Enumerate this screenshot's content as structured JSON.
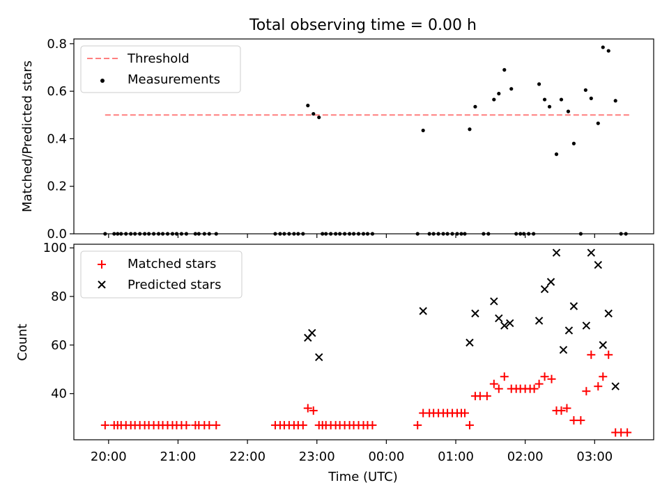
{
  "chart_data": [
    {
      "type": "scatter",
      "title": "Total observing time = 0.00 h",
      "xlabel": "",
      "ylabel": "Matched/Predicted stars",
      "xlim": [
        19.5,
        27.85
      ],
      "ylim": [
        0,
        0.82
      ],
      "yticks": [
        0.0,
        0.2,
        0.4,
        0.6,
        0.8
      ],
      "ytick_labels": [
        "0.0",
        "0.2",
        "0.4",
        "0.6",
        "0.8"
      ],
      "legend_position": "top-left",
      "threshold": {
        "name": "Threshold",
        "y": 0.5,
        "x_range": [
          19.95,
          27.5
        ],
        "color": "#ff7f7f"
      },
      "series": [
        {
          "name": "Measurements",
          "color": "#000000",
          "x": [
            19.95,
            20.08,
            20.13,
            20.18,
            20.25,
            20.32,
            20.38,
            20.45,
            20.52,
            20.58,
            20.65,
            20.72,
            20.78,
            20.85,
            20.92,
            20.98,
            21.05,
            21.12,
            21.25,
            21.3,
            21.38,
            21.45,
            21.55,
            22.4,
            22.47,
            22.53,
            22.6,
            22.67,
            22.73,
            22.8,
            22.87,
            22.95,
            23.03,
            23.08,
            23.13,
            23.2,
            23.27,
            23.33,
            23.4,
            23.47,
            23.53,
            23.6,
            23.67,
            23.73,
            23.8,
            24.45,
            24.53,
            24.62,
            24.68,
            24.75,
            24.82,
            24.88,
            24.95,
            25.02,
            25.08,
            25.13,
            25.2,
            25.28,
            25.4,
            25.47,
            25.55,
            25.62,
            25.7,
            25.8,
            25.87,
            25.93,
            25.98,
            26.05,
            26.12,
            26.2,
            26.28,
            26.35,
            26.45,
            26.52,
            26.62,
            26.7,
            26.8,
            26.87,
            26.95,
            27.05,
            27.12,
            27.2,
            27.3,
            27.38,
            27.45
          ],
          "y": [
            0,
            0,
            0,
            0,
            0,
            0,
            0,
            0,
            0,
            0,
            0,
            0,
            0,
            0,
            0,
            0,
            0,
            0,
            0,
            0,
            0,
            0,
            0,
            0,
            0,
            0,
            0,
            0,
            0,
            0,
            0.54,
            0.505,
            0.49,
            0,
            0,
            0,
            0,
            0,
            0,
            0,
            0,
            0,
            0,
            0,
            0,
            0,
            0.435,
            0,
            0,
            0,
            0,
            0,
            0,
            0,
            0,
            0,
            0.44,
            0.535,
            0,
            0,
            0.565,
            0.59,
            0.69,
            0.61,
            0,
            0,
            0,
            0,
            0,
            0.63,
            0.565,
            0.535,
            0.335,
            0.565,
            0.515,
            0.38,
            0,
            0.605,
            0.57,
            0.465,
            0.785,
            0.77,
            0.56,
            0,
            0
          ]
        }
      ]
    },
    {
      "type": "scatter",
      "title": "",
      "xlabel": "Time (UTC)",
      "ylabel": "Count",
      "xlim": [
        19.5,
        27.85
      ],
      "ylim": [
        21,
        101.5
      ],
      "yticks": [
        40,
        60,
        80,
        100
      ],
      "ytick_labels": [
        "40",
        "60",
        "80",
        "100"
      ],
      "xticks": [
        20,
        21,
        22,
        23,
        24,
        25,
        26,
        27
      ],
      "xtick_labels": [
        "20:00",
        "21:00",
        "22:00",
        "23:00",
        "00:00",
        "01:00",
        "02:00",
        "03:00"
      ],
      "legend_position": "top-left",
      "series": [
        {
          "name": "Matched stars",
          "color": "#ff0000",
          "marker": "plus",
          "x": [
            19.95,
            20.08,
            20.13,
            20.18,
            20.25,
            20.32,
            20.38,
            20.45,
            20.52,
            20.58,
            20.65,
            20.72,
            20.78,
            20.85,
            20.92,
            20.98,
            21.05,
            21.12,
            21.25,
            21.3,
            21.38,
            21.45,
            21.55,
            22.4,
            22.47,
            22.53,
            22.6,
            22.67,
            22.73,
            22.8,
            22.87,
            22.95,
            23.03,
            23.08,
            23.13,
            23.2,
            23.27,
            23.33,
            23.4,
            23.47,
            23.53,
            23.6,
            23.67,
            23.73,
            23.8,
            24.45,
            24.53,
            24.62,
            24.68,
            24.75,
            24.82,
            24.88,
            24.95,
            25.02,
            25.08,
            25.13,
            25.2,
            25.28,
            25.35,
            25.45,
            25.55,
            25.62,
            25.7,
            25.8,
            25.87,
            25.93,
            26.0,
            26.07,
            26.13,
            26.2,
            26.28,
            26.38,
            26.45,
            26.52,
            26.6,
            26.7,
            26.8,
            26.88,
            26.95,
            27.05,
            27.12,
            27.2,
            27.3,
            27.38,
            27.47
          ],
          "y": [
            27,
            27,
            27,
            27,
            27,
            27,
            27,
            27,
            27,
            27,
            27,
            27,
            27,
            27,
            27,
            27,
            27,
            27,
            27,
            27,
            27,
            27,
            27,
            27,
            27,
            27,
            27,
            27,
            27,
            27,
            34,
            33,
            27,
            27,
            27,
            27,
            27,
            27,
            27,
            27,
            27,
            27,
            27,
            27,
            27,
            27,
            32,
            32,
            32,
            32,
            32,
            32,
            32,
            32,
            32,
            32,
            27,
            39,
            39,
            39,
            44,
            42,
            47,
            42,
            42,
            42,
            42,
            42,
            42,
            44,
            47,
            46,
            33,
            33,
            34,
            29,
            29,
            41,
            56,
            43,
            47,
            56,
            24,
            24,
            24
          ]
        },
        {
          "name": "Predicted stars",
          "color": "#000000",
          "marker": "x",
          "x": [
            22.87,
            22.93,
            23.03,
            24.53,
            25.2,
            25.28,
            25.55,
            25.62,
            25.7,
            25.78,
            26.2,
            26.28,
            26.37,
            26.45,
            26.55,
            26.63,
            26.7,
            26.88,
            26.95,
            27.05,
            27.12,
            27.2,
            27.3
          ],
          "y": [
            63,
            65,
            55,
            74,
            61,
            73,
            78,
            71,
            68,
            69,
            70,
            83,
            86,
            98,
            58,
            66,
            76,
            68,
            98,
            93,
            60,
            73,
            43
          ]
        }
      ]
    }
  ]
}
